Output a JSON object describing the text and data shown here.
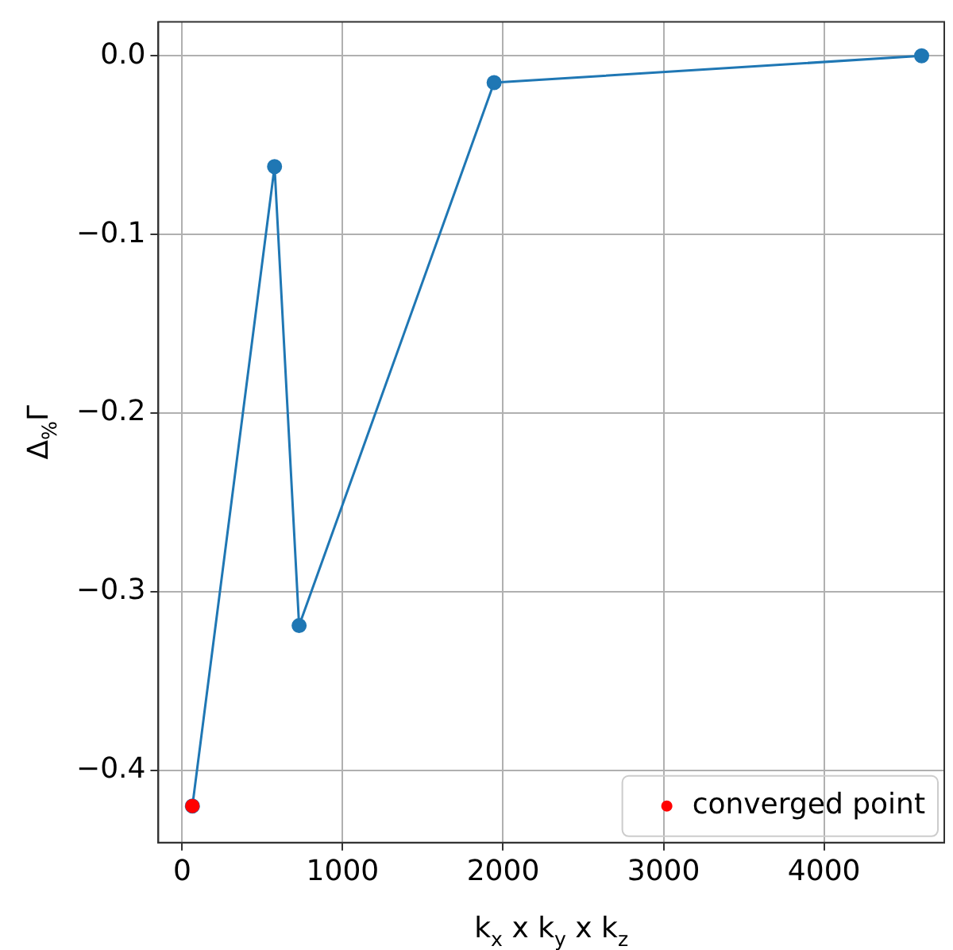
{
  "chart_data": {
    "type": "line",
    "xlabel": "k$_{x}$ x k$_{y}$ x k$_{z}$",
    "ylabel": "Δ$_{%}$Γ",
    "xlim": [
      -148,
      4749
    ],
    "xticks": [
      0,
      1000,
      2000,
      3000,
      4000
    ],
    "ylim": [
      -0.4405,
      0.019
    ],
    "yticks": [
      {
        "value": 0,
        "label": "0.0"
      },
      -0.1,
      -0.2,
      -0.3,
      -0.4
    ],
    "grid": true,
    "legend": "bottom right",
    "marker": "circle",
    "line_style": "solid",
    "series": [
      {
        "color": "#1f77b4",
        "x": [
          64,
          576,
          729,
          1944,
          4608
        ],
        "values": [
          -0.42,
          -0.062,
          -0.319,
          -0.015,
          0.0
        ]
      },
      {
        "type": "scatter",
        "name": "converged point",
        "color": "#ff0000",
        "x": [
          64
        ],
        "values": [
          -0.42
        ]
      }
    ]
  }
}
